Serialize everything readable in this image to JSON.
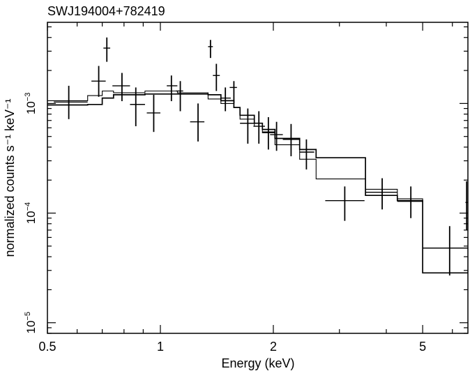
{
  "chart_data": {
    "type": "scatter",
    "title": "SWJ194004+782419",
    "xlabel": "Energy (keV)",
    "ylabel": "normalized counts s⁻¹ keV⁻¹",
    "x_scale": "log",
    "y_scale": "log",
    "xlim": [
      0.5,
      6.6
    ],
    "ylim": [
      8e-06,
      0.0055
    ],
    "grid": false,
    "legend": "none",
    "x_ticks": [
      {
        "value": 0.5,
        "label": "0.5"
      },
      {
        "value": 1,
        "label": "1"
      },
      {
        "value": 2,
        "label": "2"
      },
      {
        "value": 5,
        "label": "5"
      }
    ],
    "y_ticks": [
      {
        "value": 1e-05,
        "base": "10",
        "exp": "−5"
      },
      {
        "value": 0.0001,
        "base": "10",
        "exp": "−4"
      },
      {
        "value": 0.001,
        "base": "10",
        "exp": "−3"
      }
    ],
    "series": [
      {
        "points": [
          {
            "x": 0.57,
            "xlo": 0.52,
            "xhi": 0.64,
            "y": 0.00103,
            "ylo": 0.00072,
            "yhi": 0.00145
          },
          {
            "x": 0.685,
            "xlo": 0.655,
            "xhi": 0.715,
            "y": 0.0016,
            "ylo": 0.00115,
            "yhi": 0.0022
          },
          {
            "x": 0.72,
            "xlo": 0.705,
            "xhi": 0.735,
            "y": 0.0032,
            "ylo": 0.0024,
            "yhi": 0.004
          },
          {
            "x": 0.79,
            "xlo": 0.745,
            "xhi": 0.83,
            "y": 0.00145,
            "ylo": 0.00105,
            "yhi": 0.0019
          },
          {
            "x": 0.86,
            "xlo": 0.83,
            "xhi": 0.91,
            "y": 0.00098,
            "ylo": 0.00062,
            "yhi": 0.0014
          },
          {
            "x": 0.96,
            "xlo": 0.92,
            "xhi": 1.0,
            "y": 0.00082,
            "ylo": 0.00055,
            "yhi": 0.0012
          },
          {
            "x": 1.07,
            "xlo": 1.04,
            "xhi": 1.11,
            "y": 0.00145,
            "ylo": 0.00105,
            "yhi": 0.0018
          },
          {
            "x": 1.13,
            "xlo": 1.1,
            "xhi": 1.15,
            "y": 0.0013,
            "ylo": 0.00085,
            "yhi": 0.0016
          },
          {
            "x": 1.26,
            "xlo": 1.2,
            "xhi": 1.31,
            "y": 0.00068,
            "ylo": 0.00045,
            "yhi": 0.001
          },
          {
            "x": 1.36,
            "xlo": 1.34,
            "xhi": 1.38,
            "y": 0.0033,
            "ylo": 0.0026,
            "yhi": 0.0038
          },
          {
            "x": 1.41,
            "xlo": 1.38,
            "xhi": 1.44,
            "y": 0.0018,
            "ylo": 0.0013,
            "yhi": 0.0023
          },
          {
            "x": 1.49,
            "xlo": 1.45,
            "xhi": 1.54,
            "y": 0.00112,
            "ylo": 0.00085,
            "yhi": 0.0014
          },
          {
            "x": 1.57,
            "xlo": 1.53,
            "xhi": 1.6,
            "y": 0.0014,
            "ylo": 0.001,
            "yhi": 0.0016
          },
          {
            "x": 1.71,
            "xlo": 1.63,
            "xhi": 1.78,
            "y": 0.00066,
            "ylo": 0.00043,
            "yhi": 0.0009
          },
          {
            "x": 1.83,
            "xlo": 1.77,
            "xhi": 1.9,
            "y": 0.00062,
            "ylo": 0.00043,
            "yhi": 0.00085
          },
          {
            "x": 1.94,
            "xlo": 1.87,
            "xhi": 2.02,
            "y": 0.00055,
            "ylo": 0.00038,
            "yhi": 0.00075
          },
          {
            "x": 2.04,
            "xlo": 1.96,
            "xhi": 2.12,
            "y": 0.00052,
            "ylo": 0.00037,
            "yhi": 0.00068
          },
          {
            "x": 2.23,
            "xlo": 2.12,
            "xhi": 2.35,
            "y": 0.00047,
            "ylo": 0.00033,
            "yhi": 0.00065
          },
          {
            "x": 2.45,
            "xlo": 2.35,
            "xhi": 2.57,
            "y": 0.00036,
            "ylo": 0.00025,
            "yhi": 0.00047
          },
          {
            "x": 3.1,
            "xlo": 2.75,
            "xhi": 3.5,
            "y": 0.00013,
            "ylo": 8.5e-05,
            "yhi": 0.000175
          },
          {
            "x": 3.9,
            "xlo": 3.52,
            "xhi": 4.28,
            "y": 0.000155,
            "ylo": 0.000108,
            "yhi": 0.000208
          },
          {
            "x": 4.65,
            "xlo": 4.28,
            "xhi": 5.0,
            "y": 0.000128,
            "ylo": 9e-05,
            "yhi": 0.000175
          },
          {
            "x": 5.9,
            "xlo": 5.0,
            "xhi": 6.6,
            "y": 4.8e-05,
            "ylo": 2.7e-05,
            "yhi": 7.6e-05
          },
          {
            "x": 6.55,
            "xlo": 6.5,
            "xhi": 6.6,
            "y": 0.000125,
            "ylo": 7e-05,
            "yhi": 0.000195
          }
        ]
      },
      {
        "type": "step",
        "points": [
          {
            "xlo": 0.5,
            "xhi": 0.64,
            "y": 0.00106
          },
          {
            "xlo": 0.64,
            "xhi": 0.7,
            "y": 0.00118
          },
          {
            "xlo": 0.7,
            "xhi": 0.75,
            "y": 0.0013
          },
          {
            "xlo": 0.75,
            "xhi": 0.91,
            "y": 0.00125
          },
          {
            "xlo": 0.91,
            "xhi": 1.11,
            "y": 0.0013
          },
          {
            "xlo": 1.11,
            "xhi": 1.34,
            "y": 0.00125
          },
          {
            "xlo": 1.34,
            "xhi": 1.45,
            "y": 0.0011
          },
          {
            "xlo": 1.45,
            "xhi": 1.57,
            "y": 0.001
          },
          {
            "xlo": 1.57,
            "xhi": 1.63,
            "y": 0.00092
          },
          {
            "xlo": 1.63,
            "xhi": 1.78,
            "y": 0.00072
          },
          {
            "xlo": 1.78,
            "xhi": 1.87,
            "y": 0.00062
          },
          {
            "xlo": 1.87,
            "xhi": 2.02,
            "y": 0.00054
          },
          {
            "xlo": 2.02,
            "xhi": 2.35,
            "y": 0.00042
          },
          {
            "xlo": 2.35,
            "xhi": 2.6,
            "y": 0.00031
          },
          {
            "xlo": 2.6,
            "xhi": 3.52,
            "y": 0.000205
          },
          {
            "xlo": 3.52,
            "xhi": 4.28,
            "y": 0.000165
          },
          {
            "xlo": 4.28,
            "xhi": 5.0,
            "y": 0.000135
          },
          {
            "xlo": 5.0,
            "xhi": 6.6,
            "y": 4.8e-05
          },
          {
            "xlo": 6.6,
            "xhi": 6.6,
            "y": 2.85e-05
          }
        ]
      },
      {
        "type": "step",
        "points": [
          {
            "xlo": 0.5,
            "xhi": 0.64,
            "y": 0.00097
          },
          {
            "xlo": 0.64,
            "xhi": 0.7,
            "y": 0.00098
          },
          {
            "xlo": 0.7,
            "xhi": 0.75,
            "y": 0.00112
          },
          {
            "xlo": 0.75,
            "xhi": 0.91,
            "y": 0.0012
          },
          {
            "xlo": 0.91,
            "xhi": 1.11,
            "y": 0.00122
          },
          {
            "xlo": 1.11,
            "xhi": 1.34,
            "y": 0.00122
          },
          {
            "xlo": 1.34,
            "xhi": 1.45,
            "y": 0.0012
          },
          {
            "xlo": 1.45,
            "xhi": 1.57,
            "y": 0.00106
          },
          {
            "xlo": 1.57,
            "xhi": 1.63,
            "y": 0.00092
          },
          {
            "xlo": 1.63,
            "xhi": 1.78,
            "y": 0.00078
          },
          {
            "xlo": 1.78,
            "xhi": 1.87,
            "y": 0.00066
          },
          {
            "xlo": 1.87,
            "xhi": 2.02,
            "y": 0.00058
          },
          {
            "xlo": 2.02,
            "xhi": 2.35,
            "y": 0.00048
          },
          {
            "xlo": 2.35,
            "xhi": 2.6,
            "y": 0.00038
          },
          {
            "xlo": 2.6,
            "xhi": 3.52,
            "y": 0.00032
          },
          {
            "xlo": 3.52,
            "xhi": 4.28,
            "y": 0.000145
          },
          {
            "xlo": 4.28,
            "xhi": 5.0,
            "y": 0.00013
          },
          {
            "xlo": 5.0,
            "xhi": 6.6,
            "y": 2.85e-05
          },
          {
            "xlo": 6.6,
            "xhi": 6.6,
            "y": 2.85e-05
          }
        ]
      }
    ]
  }
}
